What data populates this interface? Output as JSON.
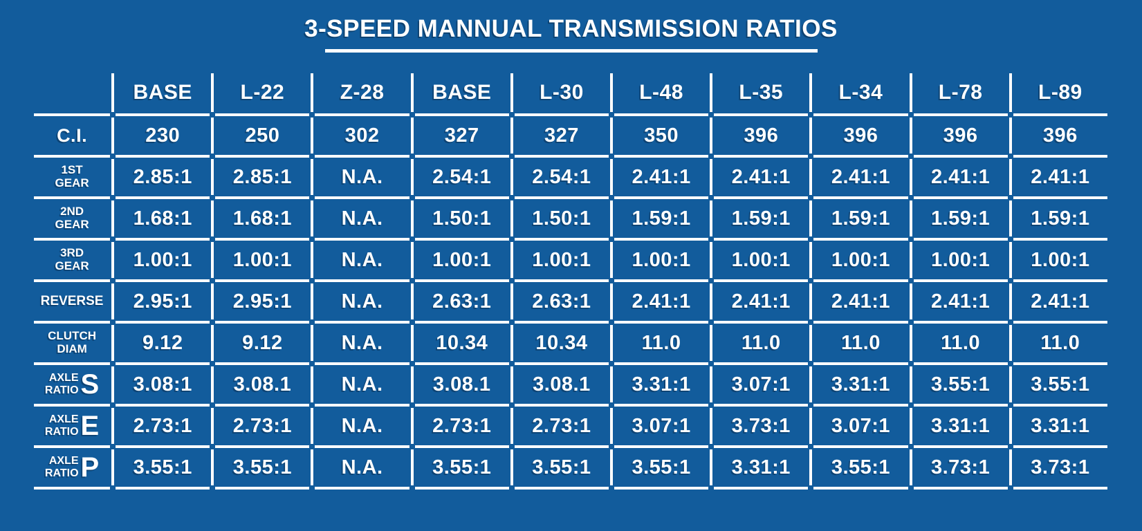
{
  "page": {
    "background_color": "#125C9C",
    "grid_color": "#FFFFFF",
    "text_color": "#FFFFFF"
  },
  "title": {
    "text": "3-SPEED MANNUAL TRANSMISSION RATIOS"
  },
  "chart_data": {
    "type": "table",
    "title": "3-SPEED MANNUAL TRANSMISSION RATIOS",
    "columns": [
      "BASE",
      "L-22",
      "Z-28",
      "BASE",
      "L-30",
      "L-48",
      "L-35",
      "L-34",
      "L-78",
      "L-89"
    ],
    "rows": [
      {
        "label": "C.I.",
        "label_lines": [
          "C.I."
        ],
        "label_style": "lg",
        "values": [
          "230",
          "250",
          "302",
          "327",
          "327",
          "350",
          "396",
          "396",
          "396",
          "396"
        ]
      },
      {
        "label": "1ST GEAR",
        "label_lines": [
          "1ST",
          "GEAR"
        ],
        "label_style": "stack",
        "values": [
          "2.85:1",
          "2.85:1",
          "N.A.",
          "2.54:1",
          "2.54:1",
          "2.41:1",
          "2.41:1",
          "2.41:1",
          "2.41:1",
          "2.41:1"
        ]
      },
      {
        "label": "2ND GEAR",
        "label_lines": [
          "2ND",
          "GEAR"
        ],
        "label_style": "stack",
        "values": [
          "1.68:1",
          "1.68:1",
          "N.A.",
          "1.50:1",
          "1.50:1",
          "1.59:1",
          "1.59:1",
          "1.59:1",
          "1.59:1",
          "1.59:1"
        ]
      },
      {
        "label": "3RD GEAR",
        "label_lines": [
          "3RD",
          "GEAR"
        ],
        "label_style": "stack",
        "values": [
          "1.00:1",
          "1.00:1",
          "N.A.",
          "1.00:1",
          "1.00:1",
          "1.00:1",
          "1.00:1",
          "1.00:1",
          "1.00:1",
          "1.00:1"
        ]
      },
      {
        "label": "REVERSE",
        "label_lines": [
          "REVERSE"
        ],
        "label_style": "sm",
        "values": [
          "2.95:1",
          "2.95:1",
          "N.A.",
          "2.63:1",
          "2.63:1",
          "2.41:1",
          "2.41:1",
          "2.41:1",
          "2.41:1",
          "2.41:1"
        ]
      },
      {
        "label": "CLUTCH DIAM",
        "label_lines": [
          "CLUTCH",
          "DIAM"
        ],
        "label_style": "stack",
        "values": [
          "9.12",
          "9.12",
          "N.A.",
          "10.34",
          "10.34",
          "11.0",
          "11.0",
          "11.0",
          "11.0",
          "11.0"
        ]
      },
      {
        "label": "AXLE RATIO S",
        "label_lines": [
          "AXLE",
          "RATIO"
        ],
        "label_letter": "S",
        "label_style": "axle",
        "values": [
          "3.08:1",
          "3.08.1",
          "N.A.",
          "3.08.1",
          "3.08.1",
          "3.31:1",
          "3.07:1",
          "3.31:1",
          "3.55:1",
          "3.55:1"
        ]
      },
      {
        "label": "AXLE RATIO E",
        "label_lines": [
          "AXLE",
          "RATIO"
        ],
        "label_letter": "E",
        "label_style": "axle",
        "values": [
          "2.73:1",
          "2.73:1",
          "N.A.",
          "2.73:1",
          "2.73:1",
          "3.07:1",
          "3.73:1",
          "3.07:1",
          "3.31:1",
          "3.31:1"
        ]
      },
      {
        "label": "AXLE RATIO P",
        "label_lines": [
          "AXLE",
          "RATIO"
        ],
        "label_letter": "P",
        "label_style": "axle",
        "values": [
          "3.55:1",
          "3.55:1",
          "N.A.",
          "3.55:1",
          "3.55:1",
          "3.55:1",
          "3.31:1",
          "3.55:1",
          "3.73:1",
          "3.73:1"
        ]
      }
    ]
  }
}
